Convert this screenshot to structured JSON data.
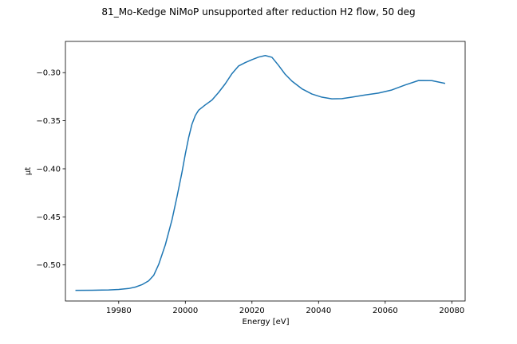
{
  "chart_data": {
    "type": "line",
    "title": "81_Mo-Kedge NiMoP unsupported after reduction H2 flow, 50 deg",
    "xlabel": "Energy [eV]",
    "ylabel": "μt",
    "xlim": [
      19964,
      20084
    ],
    "ylim": [
      -0.5375,
      -0.2675
    ],
    "xticks": [
      19980,
      20000,
      20020,
      20040,
      20060,
      20080
    ],
    "yticks": [
      -0.5,
      -0.45,
      -0.4,
      -0.35,
      -0.3
    ],
    "xtick_labels": [
      "19980",
      "20000",
      "20020",
      "20040",
      "20060",
      "20080"
    ],
    "ytick_labels": [
      "−0.50",
      "−0.45",
      "−0.40",
      "−0.35",
      "−0.30"
    ],
    "grid": false,
    "line_color": "#1f77b4",
    "series": [
      {
        "x": [
          19967,
          19972,
          19977,
          19980,
          19983,
          19985,
          19987,
          19989,
          19990.5,
          19992,
          19994,
          19996,
          19997.5,
          19999,
          20000,
          20001,
          20002,
          20003,
          20004,
          20006,
          20008,
          20010,
          20012,
          20014,
          20016,
          20018,
          20020,
          20022,
          20024,
          20026,
          20028,
          20030,
          20032,
          20035,
          20038,
          20041,
          20044,
          20047,
          20050,
          20054,
          20058,
          20062,
          20066,
          20070,
          20074,
          20078
        ],
        "y": [
          -0.5264,
          -0.5263,
          -0.526,
          -0.5255,
          -0.5245,
          -0.523,
          -0.5205,
          -0.5165,
          -0.5108,
          -0.4995,
          -0.479,
          -0.453,
          -0.429,
          -0.4035,
          -0.3845,
          -0.3675,
          -0.3535,
          -0.3445,
          -0.339,
          -0.3335,
          -0.3285,
          -0.3205,
          -0.3115,
          -0.301,
          -0.293,
          -0.2895,
          -0.2865,
          -0.2838,
          -0.2822,
          -0.284,
          -0.2925,
          -0.3018,
          -0.3088,
          -0.3168,
          -0.3222,
          -0.3255,
          -0.3272,
          -0.327,
          -0.3255,
          -0.3232,
          -0.3212,
          -0.318,
          -0.3128,
          -0.3082,
          -0.3083,
          -0.3112
        ]
      }
    ]
  }
}
